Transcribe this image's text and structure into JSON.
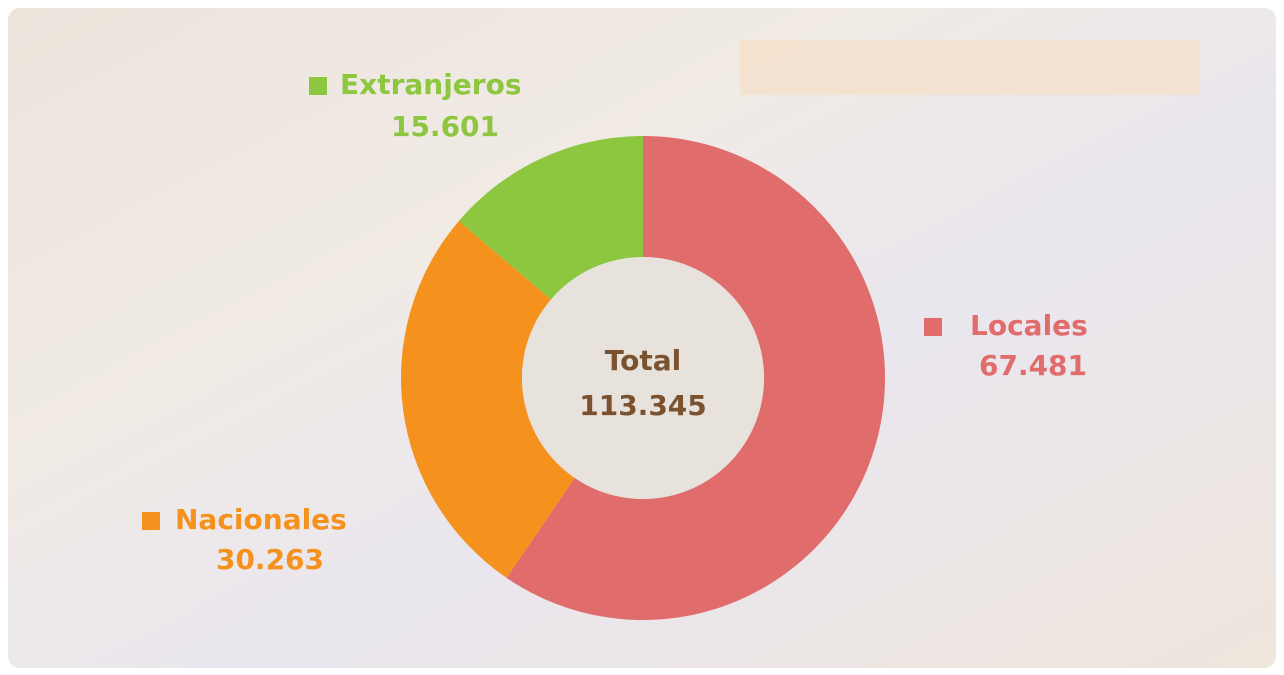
{
  "chart_data": {
    "type": "donut",
    "categories": [
      "Locales",
      "Nacionales",
      "Extranjeros"
    ],
    "values": [
      67481,
      30263,
      15601
    ],
    "value_labels": [
      "67.481",
      "30.263",
      "15.601"
    ],
    "colors": [
      "#e06c6b",
      "#f5921e",
      "#8dc63f"
    ],
    "center_title": "Total",
    "center_value": "113.345"
  }
}
